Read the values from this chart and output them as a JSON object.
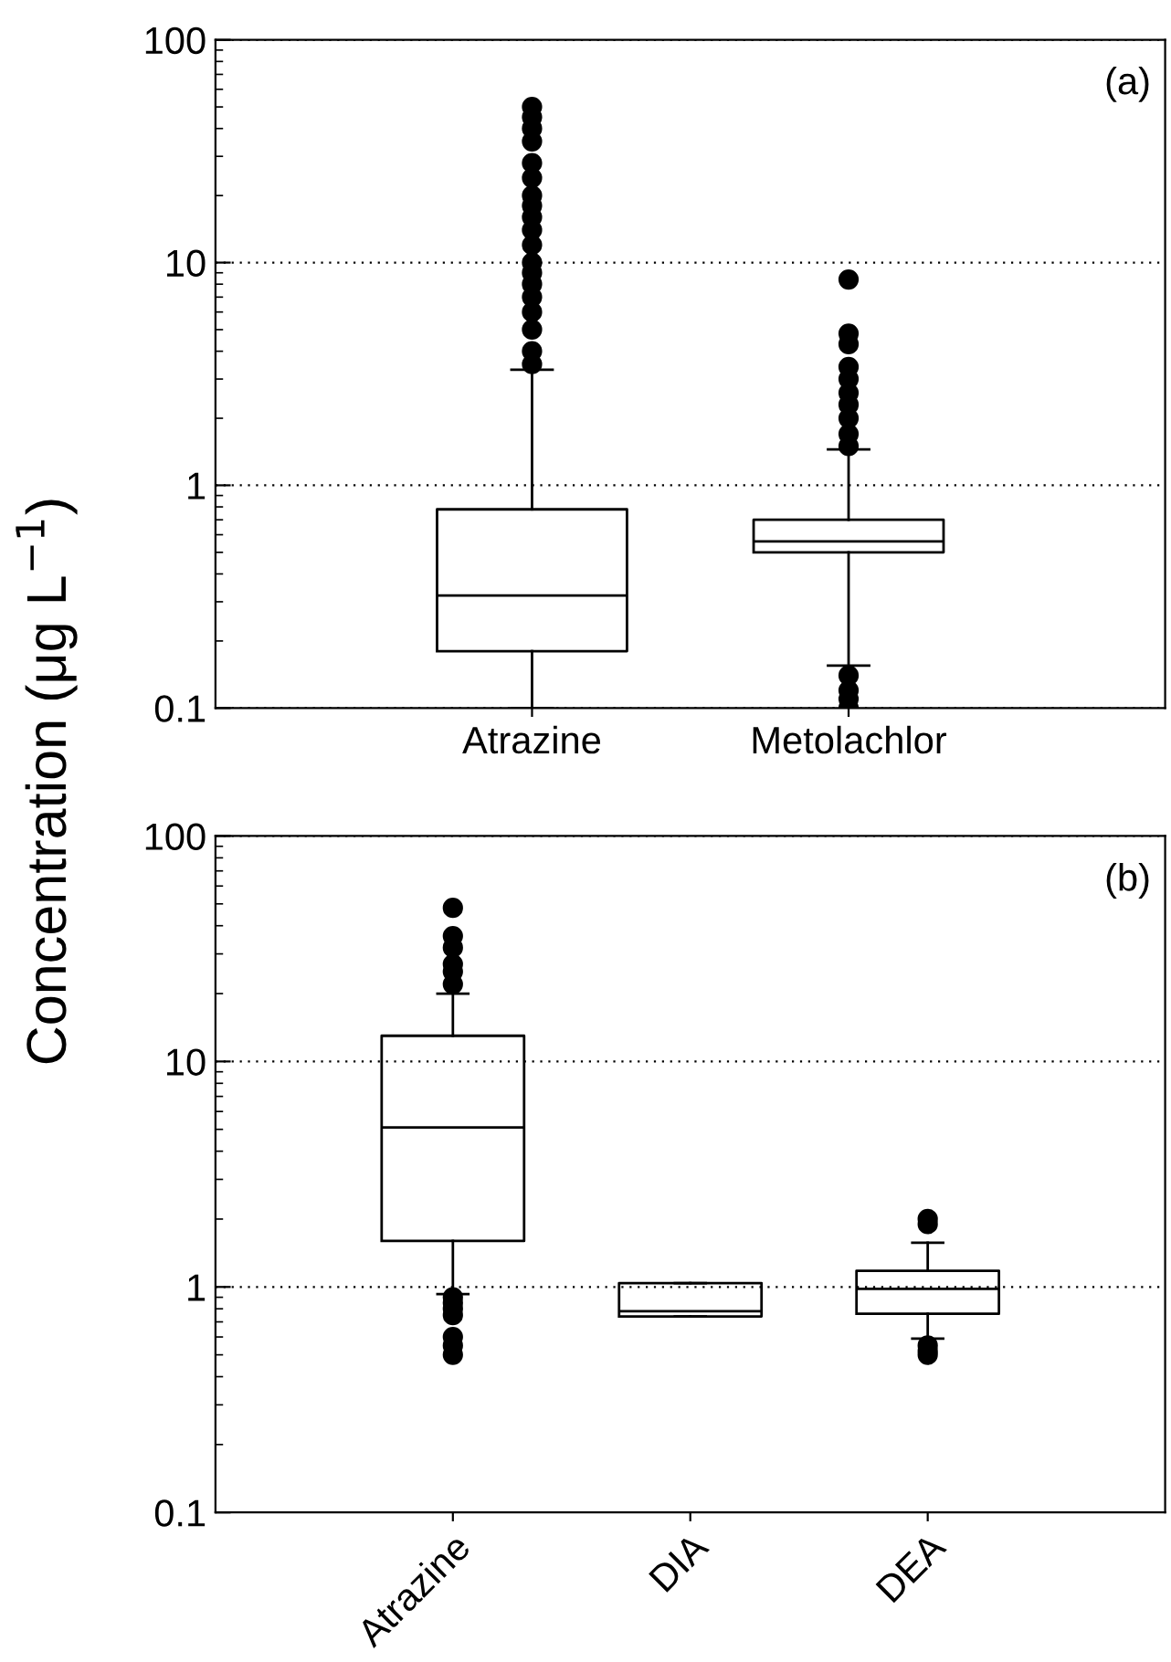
{
  "chart_data": [
    {
      "type": "box",
      "categories": [
        "Atrazine",
        "Metolachlor"
      ],
      "ylabel": "Concentration (μg L$^{−1}$)",
      "log": true,
      "ylim": [
        0.1,
        100
      ],
      "yticks": [
        0.1,
        1,
        10,
        100
      ],
      "grid": "y",
      "annotations": [
        "(a)"
      ],
      "boxes": [
        {
          "low": 0.1,
          "q1": 0.18,
          "median": 0.32,
          "q3": 0.78,
          "high": 3.3,
          "outliers": [
            3.5,
            4,
            5,
            6,
            7,
            8,
            9,
            10,
            12,
            14,
            16,
            18,
            20,
            24,
            28,
            35,
            40,
            45,
            50
          ]
        },
        {
          "low": 0.155,
          "q1": 0.5,
          "median": 0.56,
          "q3": 0.7,
          "high": 1.45,
          "outliers": [
            1.5,
            1.7,
            2,
            2.3,
            2.6,
            3,
            3.4,
            4.3,
            4.8,
            8.4,
            0.14,
            0.12,
            0.11,
            0.1
          ]
        }
      ]
    },
    {
      "type": "box",
      "categories": [
        "Atrazine",
        "DIA",
        "DEA"
      ],
      "log": true,
      "ylim": [
        0.1,
        100
      ],
      "yticks": [
        0.1,
        1,
        10,
        100
      ],
      "grid": "y",
      "annotations": [
        "(b)"
      ],
      "boxes": [
        {
          "low": 0.93,
          "q1": 1.6,
          "median": 5.1,
          "q3": 13,
          "high": 20,
          "outliers": [
            22,
            25,
            27,
            32,
            36,
            48,
            0.9,
            0.85,
            0.8,
            0.75,
            0.6,
            0.55,
            0.5
          ]
        },
        {
          "low": 0.74,
          "q1": 0.74,
          "median": 0.78,
          "q3": 1.04,
          "high": 1.04
        },
        {
          "low": 0.59,
          "q1": 0.76,
          "median": 0.98,
          "q3": 1.18,
          "high": 1.57,
          "outliers": [
            1.9,
            2.0,
            0.55,
            0.52,
            0.5
          ]
        }
      ]
    }
  ]
}
